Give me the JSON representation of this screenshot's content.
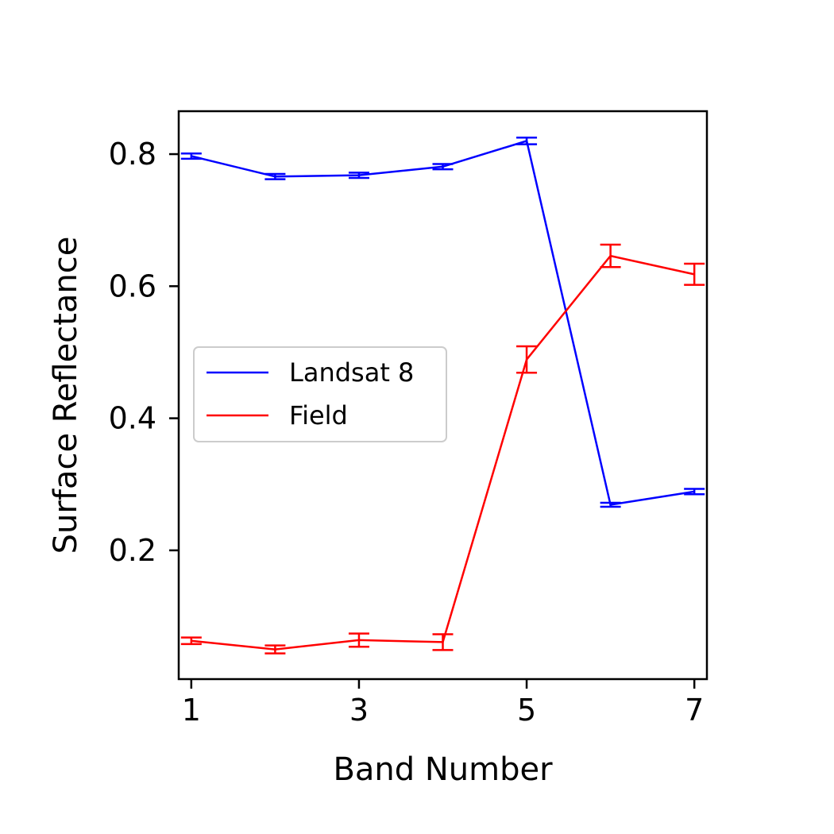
{
  "chart_data": {
    "type": "line",
    "title": "",
    "xlabel": "Band Number",
    "ylabel": "Surface Reflectance",
    "xlim": [
      0.85,
      7.15
    ],
    "ylim": [
      0.005,
      0.865
    ],
    "x_ticks": [
      1,
      3,
      5,
      7
    ],
    "y_ticks": [
      0.2,
      0.4,
      0.6,
      0.8
    ],
    "x_tick_labels": [
      "1",
      "3",
      "5",
      "7"
    ],
    "y_tick_labels": [
      "0.2",
      "0.4",
      "0.6",
      "0.8"
    ],
    "grid": false,
    "legend_position": "center-left",
    "series": [
      {
        "name": "Landsat 8",
        "color": "#0000ff",
        "x": [
          1,
          2,
          3,
          4,
          5,
          6,
          7
        ],
        "y": [
          0.797,
          0.766,
          0.768,
          0.781,
          0.82,
          0.269,
          0.289
        ],
        "error": [
          0.004,
          0.004,
          0.004,
          0.004,
          0.005,
          0.003,
          0.004
        ]
      },
      {
        "name": "Field",
        "color": "#ff0000",
        "x": [
          1,
          2,
          3,
          4,
          5,
          6,
          7
        ],
        "y": [
          0.063,
          0.05,
          0.064,
          0.061,
          0.489,
          0.646,
          0.618
        ],
        "error": [
          0.005,
          0.006,
          0.01,
          0.012,
          0.02,
          0.017,
          0.016
        ]
      }
    ]
  }
}
